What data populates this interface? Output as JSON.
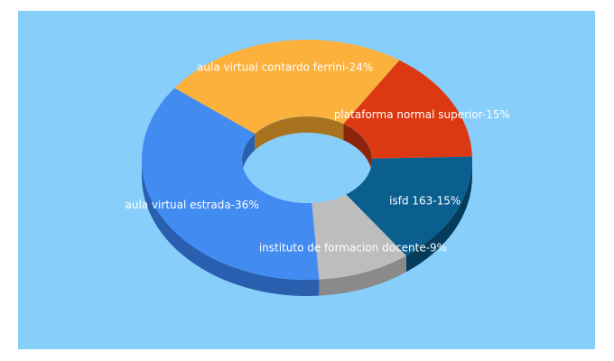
{
  "chart_data": {
    "type": "pie",
    "style": "3d-donut",
    "background": "#87cefa",
    "start_angle_deg": 304,
    "slices": [
      {
        "label": "plataforma normal superior-15%",
        "value": 15,
        "color": "#dc3912",
        "side_color": "#8b240b"
      },
      {
        "label": "isfd 163-15%",
        "value": 15,
        "color": "#0a5f8f",
        "side_color": "#053c5c"
      },
      {
        "label": "instituto de formacion docente-9%",
        "value": 9,
        "color": "#bdbdbd",
        "side_color": "#8a8a8a"
      },
      {
        "label": "aula virtual estrada-36%",
        "value": 36,
        "color": "#428bf0",
        "side_color": "#2a5fb0"
      },
      {
        "label": "aula virtual contardo ferrini-24%",
        "value": 24,
        "color": "#fbb13c",
        "side_color": "#a8731f"
      }
    ]
  }
}
